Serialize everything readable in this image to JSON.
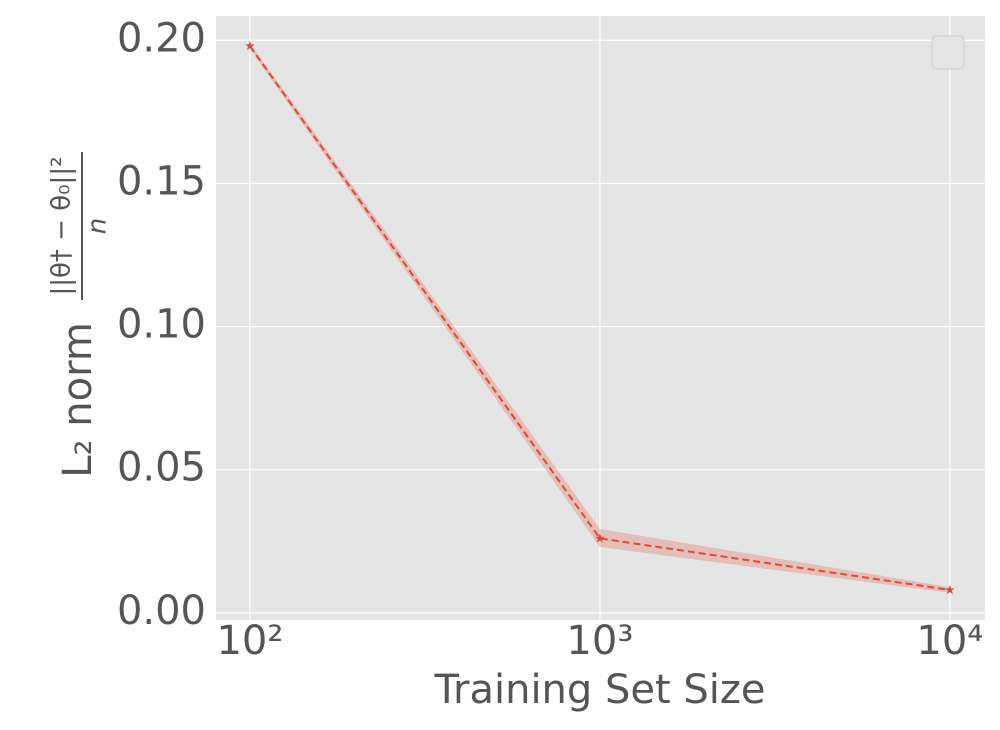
{
  "chart_data": {
    "type": "line",
    "xlabel": "Training Set Size",
    "ylabel": "L₂ norm",
    "ylabel_fraction": {
      "numerator": "||θ† − θ₀||²",
      "denominator": "n"
    },
    "x": [
      100,
      1000,
      10000
    ],
    "series": [
      {
        "color": "#E24A33",
        "values": [
          0.198,
          0.026,
          0.008
        ],
        "lower": [
          0.197,
          0.023,
          0.007
        ],
        "upper": [
          0.199,
          0.0293,
          0.009
        ]
      }
    ],
    "xscale": "log",
    "xlim": [
      80,
      12600
    ],
    "xticks": [
      {
        "value": 100,
        "label": "10²"
      },
      {
        "value": 1000,
        "label": "10³"
      },
      {
        "value": 10000,
        "label": "10⁴"
      }
    ],
    "ylim": [
      -0.0025,
      0.2085
    ],
    "yticks": [
      {
        "value": 0,
        "label": "0.00"
      },
      {
        "value": 0.05,
        "label": "0.05"
      },
      {
        "value": 0.1,
        "label": "0.10"
      },
      {
        "value": 0.15,
        "label": "0.15"
      },
      {
        "value": 0.2,
        "label": "0.20"
      }
    ],
    "grid": true
  }
}
